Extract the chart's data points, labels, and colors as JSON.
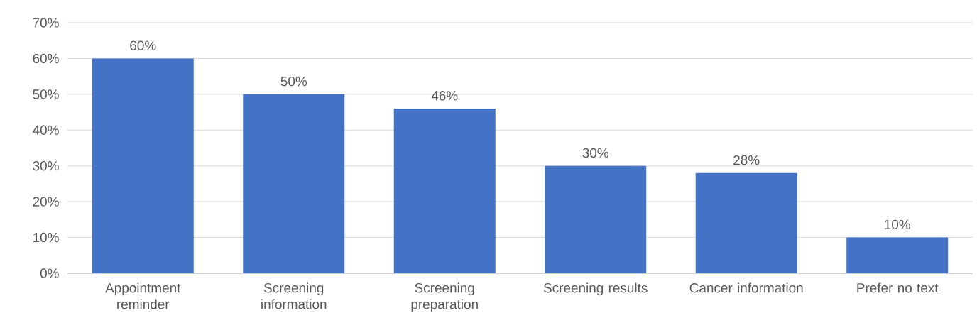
{
  "chart_data": {
    "type": "bar",
    "categories": [
      "Appointment reminder",
      "Screening information",
      "Screening preparation",
      "Screening results",
      "Cancer information",
      "Prefer no text"
    ],
    "values": [
      60,
      50,
      46,
      30,
      28,
      10
    ],
    "value_labels": [
      "60%",
      "50%",
      "46%",
      "30%",
      "28%",
      "10%"
    ],
    "color": "#4472c4",
    "ylim": [
      0,
      70
    ],
    "yticks": [
      {
        "value": 0,
        "label": "0%"
      },
      {
        "value": 10,
        "label": "10%"
      },
      {
        "value": 20,
        "label": "20%"
      },
      {
        "value": 30,
        "label": "30%"
      },
      {
        "value": 40,
        "label": "40%"
      },
      {
        "value": 50,
        "label": "50%"
      },
      {
        "value": 60,
        "label": "60%"
      },
      {
        "value": 70,
        "label": "70%"
      }
    ],
    "grid": "y"
  }
}
